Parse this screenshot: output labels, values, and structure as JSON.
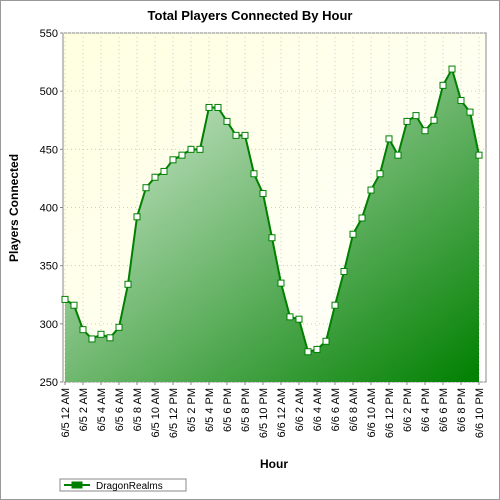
{
  "chart_data": {
    "type": "area",
    "title": "Total Players Connected By Hour",
    "x_label": "Hour",
    "y_label": "Players Connected",
    "categories": [
      "6/5 12 AM",
      null,
      "6/5 2 AM",
      null,
      "6/5 4 AM",
      null,
      "6/5 6 AM",
      null,
      "6/5 8 AM",
      null,
      "6/5 10 AM",
      null,
      "6/5 12 PM",
      null,
      "6/5 2 PM",
      null,
      "6/5 4 PM",
      null,
      "6/5 6 PM",
      null,
      "6/5 8 PM",
      null,
      "6/5 10 PM",
      null,
      "6/6 12 AM",
      null,
      "6/6 2 AM",
      null,
      "6/6 4 AM",
      null,
      "6/6 6 AM",
      null,
      "6/6 8 AM",
      null,
      "6/6 10 AM",
      null,
      "6/6 12 PM",
      null,
      "6/6 2 PM",
      null,
      "6/6 4 PM",
      null,
      "6/6 6 PM",
      null,
      "6/6 8 PM",
      null,
      "6/6 10 PM"
    ],
    "series": [
      {
        "name": "DragonRealms",
        "color": "#008000",
        "values": [
          321,
          316,
          295,
          287,
          291,
          288,
          297,
          334,
          392,
          417,
          426,
          431,
          441,
          445,
          450,
          450,
          486,
          486,
          474,
          462,
          462,
          429,
          412,
          374,
          335,
          306,
          304,
          276,
          278,
          285,
          316,
          345,
          377,
          391,
          415,
          429,
          459,
          445,
          474,
          479,
          466,
          475,
          505,
          519,
          492,
          482,
          445
        ]
      }
    ],
    "ylim": [
      250,
      550
    ],
    "yticks": [
      250,
      300,
      350,
      400,
      450,
      500,
      550
    ],
    "grid": true,
    "legend": "bottom-left"
  }
}
